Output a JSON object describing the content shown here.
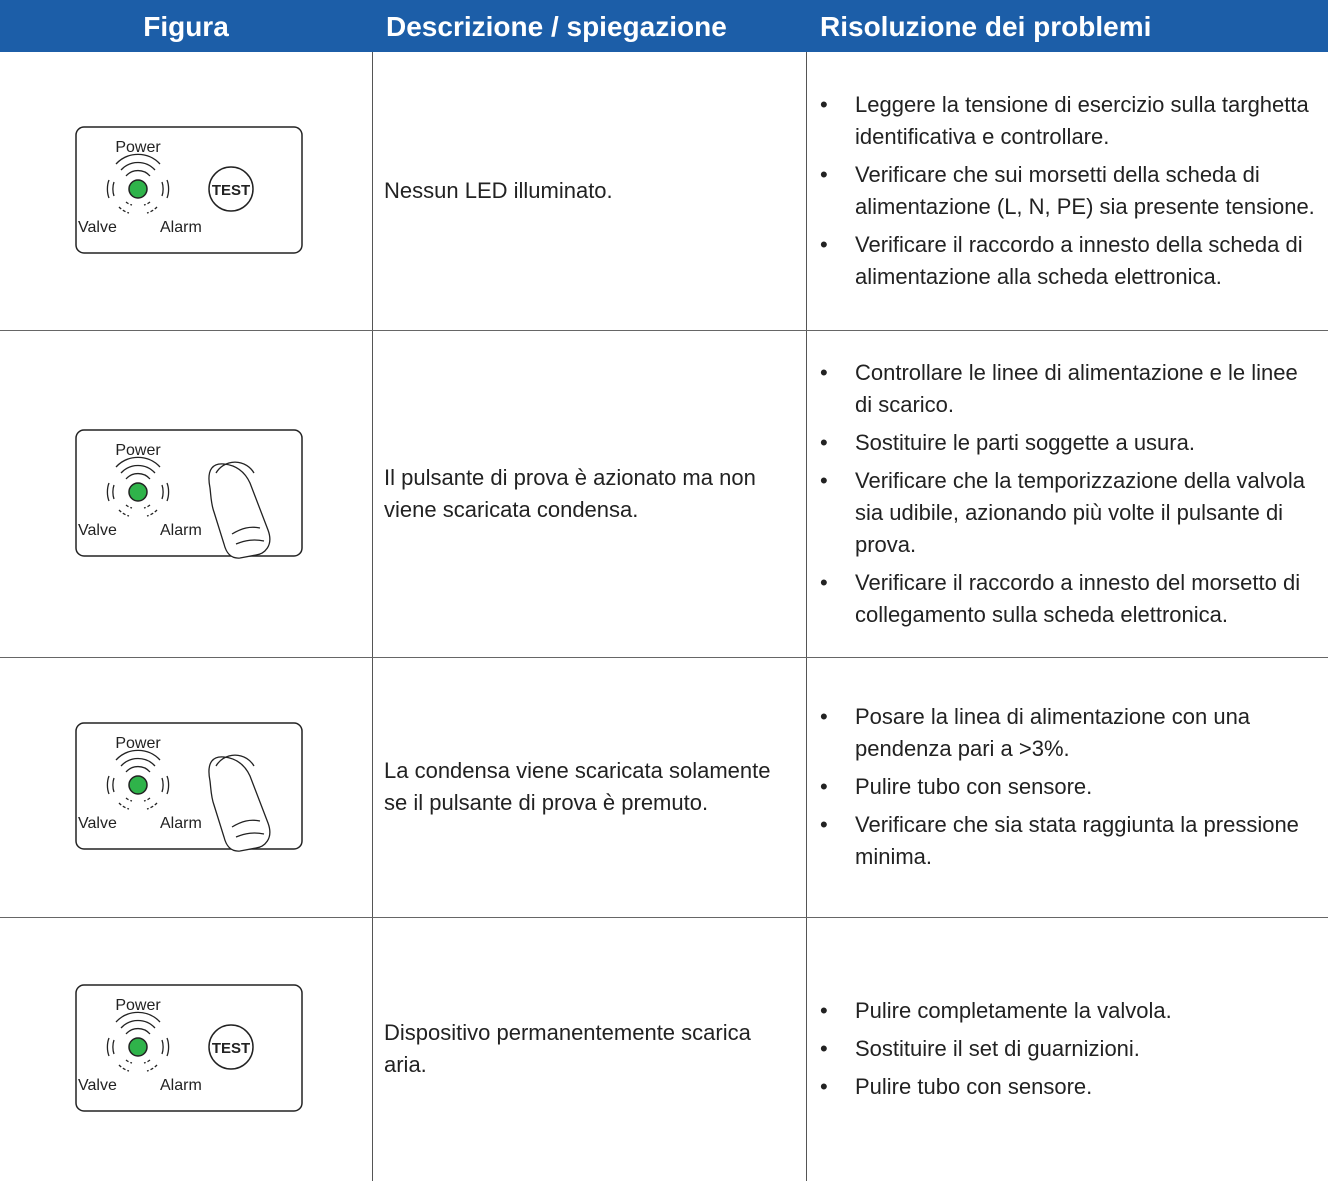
{
  "table": {
    "headers": [
      "Figura",
      "Descrizione / spiegazione",
      "Risoluzione dei problemi"
    ],
    "rows": [
      {
        "figure": {
          "power": "Power",
          "valve": "Valve",
          "alarm": "Alarm",
          "button": "TEST"
        },
        "description": "Nessun LED illuminato.",
        "remedies": [
          "Leggere la tensione di esercizio sulla targhetta identificativa e controllare.",
          "Verificare che sui morsetti della scheda di alimentazione (L, N, PE) sia presente tensione.",
          "Verificare il raccordo a innesto della scheda di alimentazione alla scheda elettronica."
        ]
      },
      {
        "figure": {
          "power": "Power",
          "valve": "Valve",
          "alarm": "Alarm"
        },
        "description": "Il pulsante di prova è azionato ma non viene scaricata condensa.",
        "remedies": [
          "Controllare le linee di alimentazione e le linee di scarico.",
          "Sostituire le parti soggette a usura.",
          "Verificare che la temporizzazione della valvola sia udibile, azionando più volte il pulsante di prova.",
          "Verificare il raccordo a innesto del morsetto di collegamento sulla scheda elettronica."
        ]
      },
      {
        "figure": {
          "power": "Power",
          "valve": "Valve",
          "alarm": "Alarm"
        },
        "description": "La condensa viene scaricata solamente se il pulsante di prova è premuto.",
        "remedies": [
          "Posare la linea di alimentazione con una pendenza pari a >3%.",
          "Pulire tubo con sensore.",
          "Verificare che sia stata raggiunta la pressione minima."
        ]
      },
      {
        "figure": {
          "power": "Power",
          "valve": "Valve",
          "alarm": "Alarm",
          "button": "TEST"
        },
        "description": "Dispositivo permanentemente scarica aria.",
        "remedies": [
          "Pulire completamente la valvola.",
          "Sostituire il set di guarnizioni.",
          "Pulire tubo con sensore."
        ]
      }
    ]
  }
}
